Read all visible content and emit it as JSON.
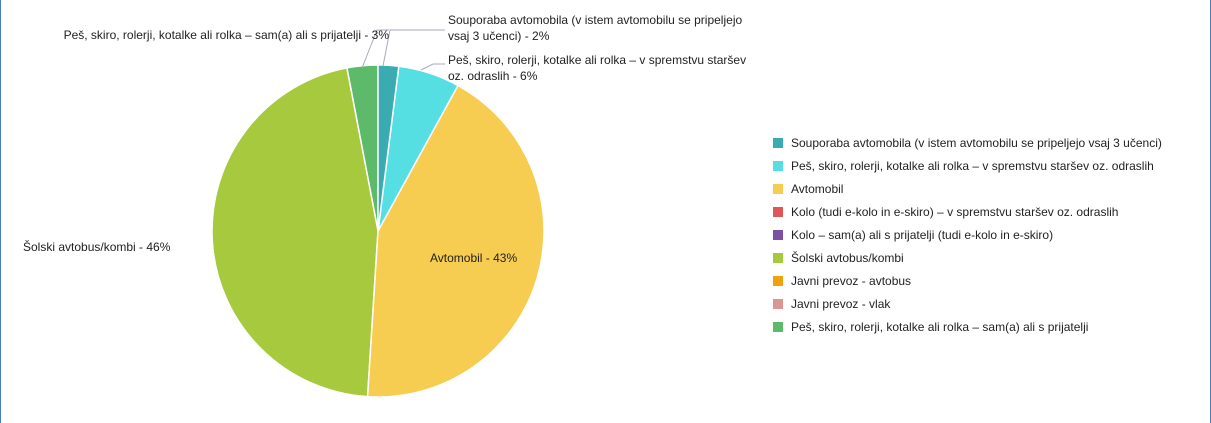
{
  "chart_data": {
    "type": "pie",
    "categories": [
      "Souporaba avtomobila (v istem avtomobilu se pripeljejo vsaj 3 učenci)",
      "Peš, skiro, rolerji, kotalke ali rolka – v spremstvu staršev oz. odraslih",
      "Avtomobil",
      "Kolo (tudi e-kolo in e-skiro) – v spremstvu staršev oz. odraslih",
      "Kolo – sam(a) ali s prijatelji (tudi e-kolo in e-skiro)",
      "Šolski avtobus/kombi",
      "Javni prevoz - avtobus",
      "Javni prevoz - vlak",
      "Peš, skiro, rolerji, kotalke ali rolka – sam(a) ali s prijatelji"
    ],
    "values": [
      2,
      6,
      43,
      0,
      0,
      46,
      0,
      0,
      3
    ],
    "value_labels": [
      "Souporaba avtomobila (v istem avtomobilu se pripeljejo vsaj 3 učenci) - 2%",
      "Peš, skiro, rolerji, kotalke ali rolka – v spremstvu staršev oz. odraslih - 6%",
      "Avtomobil - 43%",
      null,
      null,
      "Šolski avtobus/kombi - 46%",
      null,
      null,
      "Peš, skiro, rolerji, kotalke ali rolka – sam(a) ali s prijatelji - 3%"
    ],
    "colors": [
      "#3aabb0",
      "#55dfe2",
      "#f6cd50",
      "#e05555",
      "#7d50a5",
      "#a7c93d",
      "#f0a20c",
      "#d99694",
      "#5dba6a"
    ],
    "legend": "right"
  }
}
